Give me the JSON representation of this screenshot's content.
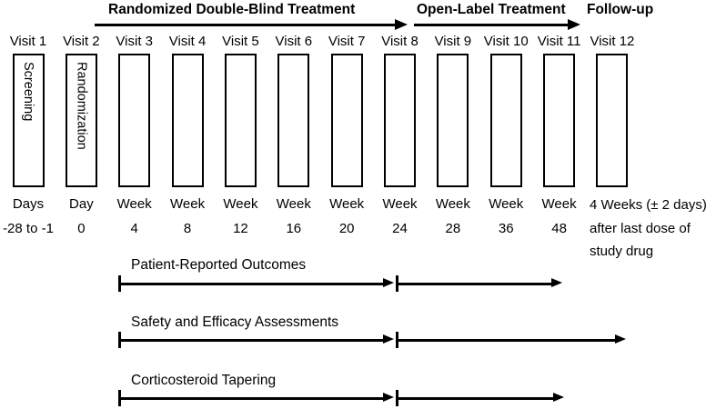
{
  "phases": [
    {
      "label": "Randomized Double-Blind Treatment",
      "has_arrow": true
    },
    {
      "label": "Open-Label Treatment",
      "has_arrow": true
    },
    {
      "label": "Follow-up",
      "has_arrow": false
    }
  ],
  "visits": [
    {
      "name": "Visit 1",
      "box_label": "Screening",
      "time_unit": "Days",
      "time_value": "-28 to -1"
    },
    {
      "name": "Visit 2",
      "box_label": "Randomization",
      "time_unit": "Day",
      "time_value": "0"
    },
    {
      "name": "Visit 3",
      "box_label": "",
      "time_unit": "Week",
      "time_value": "4"
    },
    {
      "name": "Visit 4",
      "box_label": "",
      "time_unit": "Week",
      "time_value": "8"
    },
    {
      "name": "Visit 5",
      "box_label": "",
      "time_unit": "Week",
      "time_value": "12"
    },
    {
      "name": "Visit 6",
      "box_label": "",
      "time_unit": "Week",
      "time_value": "16"
    },
    {
      "name": "Visit 7",
      "box_label": "",
      "time_unit": "Week",
      "time_value": "20"
    },
    {
      "name": "Visit 8",
      "box_label": "",
      "time_unit": "Week",
      "time_value": "24"
    },
    {
      "name": "Visit 9",
      "box_label": "",
      "time_unit": "Week",
      "time_value": "28"
    },
    {
      "name": "Visit 10",
      "box_label": "",
      "time_unit": "Week",
      "time_value": "36"
    },
    {
      "name": "Visit 11",
      "box_label": "",
      "time_unit": "Week",
      "time_value": "48"
    },
    {
      "name": "Visit 12",
      "box_label": "",
      "note_lines": [
        "4 Weeks (± 2 days)",
        "after last dose of",
        "study drug"
      ]
    }
  ],
  "assessments": [
    {
      "label": "Patient-Reported Outcomes"
    },
    {
      "label": "Safety and Efficacy Assessments"
    },
    {
      "label": "Corticosteroid Tapering"
    }
  ],
  "colors": {
    "foreground": "#000000",
    "background": "#ffffff"
  }
}
